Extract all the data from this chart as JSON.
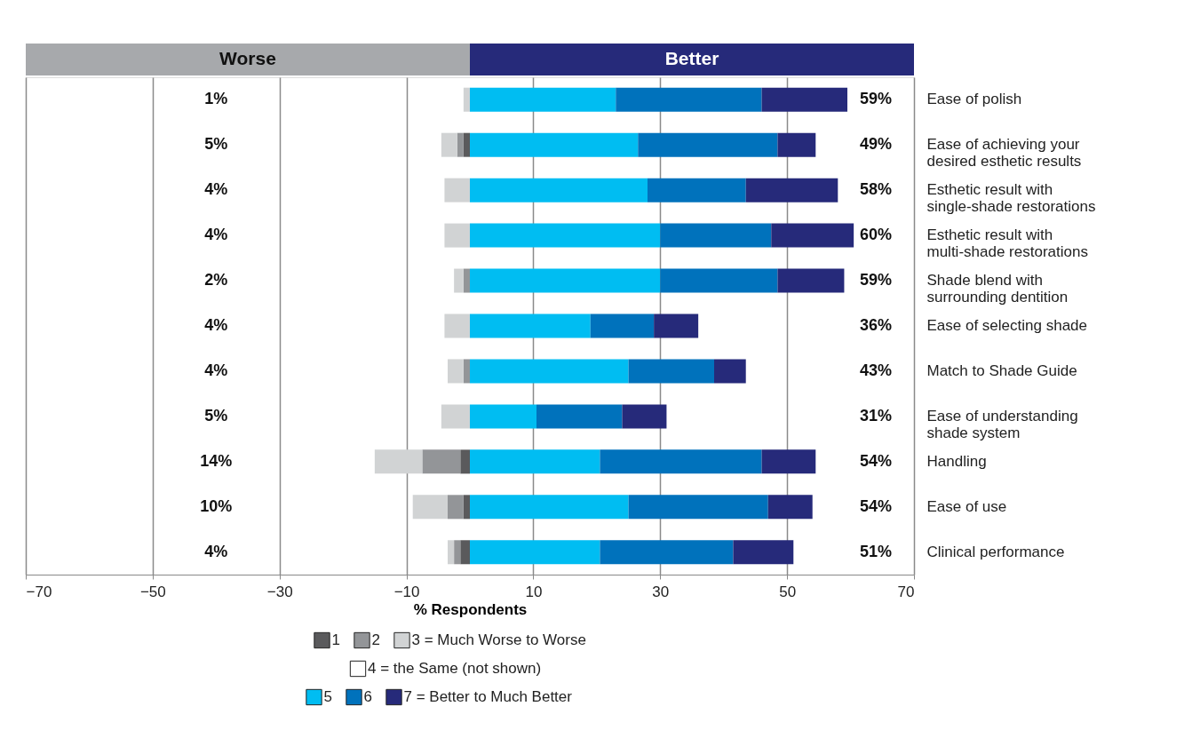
{
  "chart_data": {
    "type": "bar",
    "orientation": "horizontal",
    "stacked": true,
    "xlabel": "% Respondents",
    "categories": [
      "Ease of polish",
      "Ease of achieving your desired esthetic results",
      "Esthetic result with single-shade restorations",
      "Esthetic result with multi-shade restorations",
      "Shade blend with surrounding dentition",
      "Ease of selecting shade",
      "Match to Shade Guide",
      "Ease of understanding shade system",
      "Handling",
      "Ease of use",
      "Clinical performance"
    ],
    "series": [
      {
        "name": "1",
        "color": "#5a5a5c",
        "values": [
          null,
          -1,
          null,
          null,
          null,
          null,
          null,
          null,
          -1.5,
          -1,
          -1.5
        ]
      },
      {
        "name": "2",
        "color": "#939598",
        "values": [
          null,
          -1,
          null,
          null,
          -1,
          null,
          -1,
          null,
          -6,
          -2.5,
          -1
        ]
      },
      {
        "name": "3 = Much Worse to Worse",
        "color": "#d1d3d4",
        "values": [
          -1,
          -2.5,
          -4,
          -4,
          -1.5,
          -4,
          -2.5,
          -4.5,
          -7.5,
          -5.5,
          -1
        ]
      },
      {
        "name": "4 = the Same (not shown)",
        "color": "#ffffff",
        "values": [
          null,
          null,
          null,
          null,
          null,
          null,
          null,
          null,
          null,
          null,
          null
        ]
      },
      {
        "name": "5",
        "color": "#00bdf2",
        "values": [
          23,
          26.5,
          28,
          30,
          30,
          19,
          25,
          10.5,
          20.5,
          25,
          20.5
        ]
      },
      {
        "name": "6",
        "color": "#0072bc",
        "values": [
          23,
          22,
          15.5,
          17.5,
          18.5,
          10,
          13.5,
          13.5,
          25.5,
          22,
          21
        ]
      },
      {
        "name": "7 = Better to Much Better",
        "color": "#262a7a",
        "values": [
          13.5,
          6,
          14.5,
          13,
          10.5,
          7,
          5,
          7,
          8.5,
          7,
          9.5
        ]
      }
    ],
    "xlim": [
      -70,
      70
    ],
    "xticks": [
      -70,
      -50,
      -30,
      -10,
      10,
      30,
      50,
      70
    ],
    "grid": "x",
    "legend": "bottom",
    "annotations": [
      "Worse",
      "Better",
      "1%",
      "5%",
      "4%",
      "4%",
      "2%",
      "4%",
      "4%",
      "5%",
      "14%",
      "10%",
      "4%",
      "59%",
      "49%",
      "58%",
      "60%",
      "59%",
      "36%",
      "43%",
      "31%",
      "54%",
      "54%",
      "51%"
    ]
  }
}
